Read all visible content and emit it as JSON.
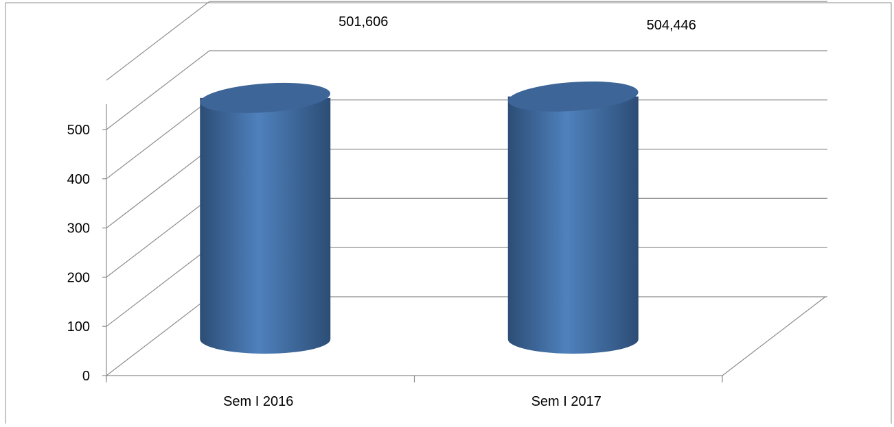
{
  "chart_data": {
    "type": "bar",
    "style": "3d-cylinder",
    "categories": [
      "Sem I 2016",
      "Sem I 2017"
    ],
    "values": [
      501.606,
      504.446
    ],
    "data_labels": [
      "501,606",
      "504,446"
    ],
    "ylim": [
      0,
      500
    ],
    "yticks": [
      "0",
      "100",
      "200",
      "300",
      "400",
      "500"
    ],
    "title": "",
    "xlabel": "",
    "ylabel": "",
    "grid": true,
    "legend": "none",
    "colors": {
      "bar_base": "#4f81bd",
      "bar_dark": "#2c4d75",
      "bar_top": "#3e6598",
      "grid": "#8c8c8c",
      "axis": "#8c8c8c"
    }
  }
}
